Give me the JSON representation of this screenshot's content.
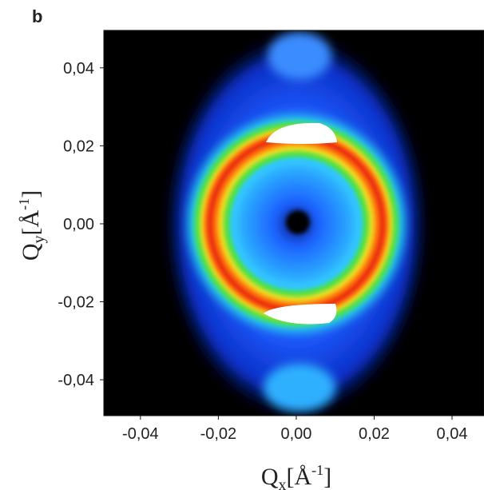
{
  "chart_data": {
    "type": "image",
    "panel_label": "b",
    "xlabel": {
      "main": "Q",
      "sub": "x",
      "unit": "[Å",
      "sup": "-1",
      "close": "]"
    },
    "ylabel": {
      "main": "Q",
      "sub": "y",
      "unit": "[Å",
      "sup": "-1",
      "close": "]"
    },
    "xlim": [
      -0.0494,
      0.0482
    ],
    "ylim": [
      -0.0492,
      0.0496
    ],
    "xticks": [
      {
        "value": -0.04,
        "label": "-0,04"
      },
      {
        "value": -0.02,
        "label": "-0,02"
      },
      {
        "value": 0.0,
        "label": "0,00"
      },
      {
        "value": 0.02,
        "label": "0,02"
      },
      {
        "value": 0.04,
        "label": "0,04"
      }
    ],
    "yticks": [
      {
        "value": -0.04,
        "label": "-0,04"
      },
      {
        "value": -0.02,
        "label": "-0,02"
      },
      {
        "value": 0.0,
        "label": "0,00"
      },
      {
        "value": 0.02,
        "label": "0,02"
      },
      {
        "value": 0.04,
        "label": "0,04"
      }
    ]
  }
}
